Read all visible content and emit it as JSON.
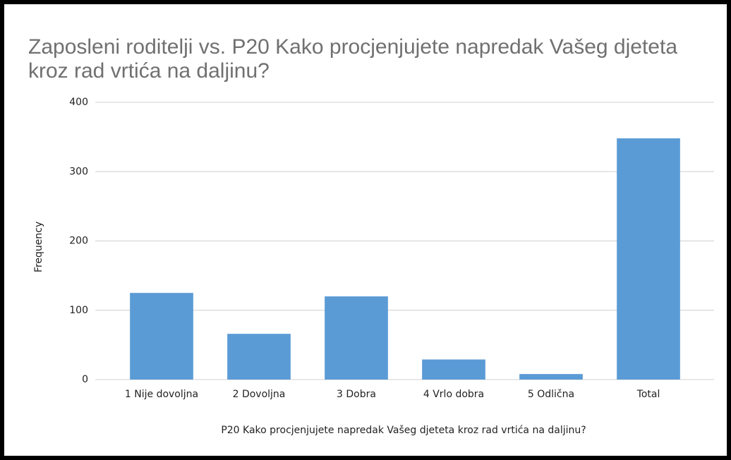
{
  "chart_data": {
    "type": "bar",
    "title": "Zaposleni roditelji vs. P20 Kako procjenjujete napredak Vašeg djeteta kroz rad vrtića na daljinu?",
    "x_label": "P20 Kako procjenjujete napredak Vašeg djeteta  kroz rad vrtića na daljinu?",
    "y_label": "Frequency",
    "categories": [
      "1 Nije dovoljna",
      "2 Dovoljna",
      "3 Dobra",
      "4 Vrlo dobra",
      "5 Odlična",
      "Total"
    ],
    "values": [
      125,
      66,
      120,
      29,
      8,
      348
    ],
    "color": "#5b9bd5",
    "ylim": [
      0,
      400
    ],
    "yticks": [
      0,
      100,
      200,
      300,
      400
    ],
    "grid": true
  }
}
